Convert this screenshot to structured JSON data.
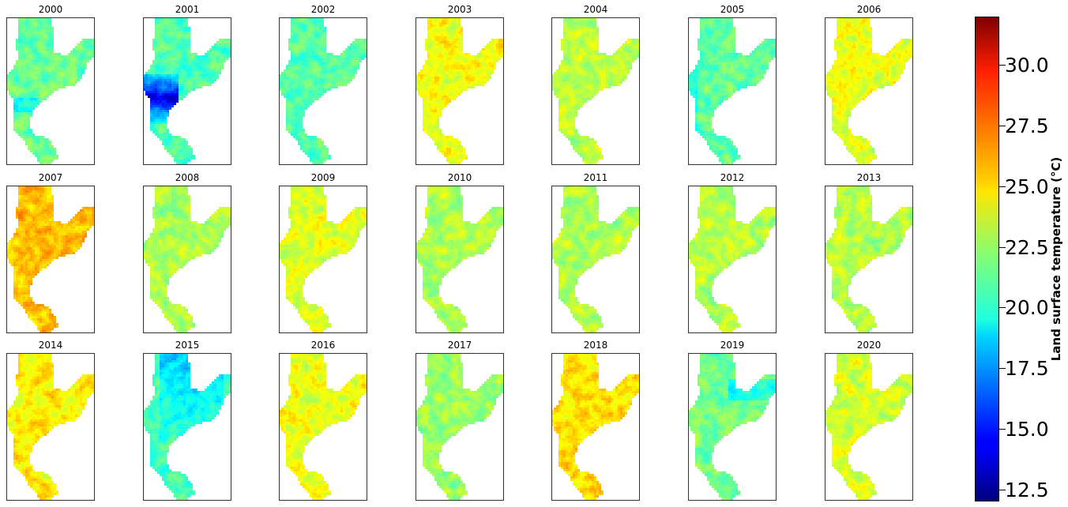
{
  "chart_data": {
    "type": "heatmap",
    "panels": [
      {
        "title": "2000",
        "mean": 21.5
      },
      {
        "title": "2001",
        "mean": 21.0
      },
      {
        "title": "2002",
        "mean": 21.3
      },
      {
        "title": "2003",
        "mean": 24.3
      },
      {
        "title": "2004",
        "mean": 23.2
      },
      {
        "title": "2005",
        "mean": 21.4
      },
      {
        "title": "2006",
        "mean": 24.0
      },
      {
        "title": "2007",
        "mean": 25.8
      },
      {
        "title": "2008",
        "mean": 22.8
      },
      {
        "title": "2009",
        "mean": 23.9
      },
      {
        "title": "2010",
        "mean": 22.9
      },
      {
        "title": "2011",
        "mean": 22.9
      },
      {
        "title": "2012",
        "mean": 23.0
      },
      {
        "title": "2013",
        "mean": 23.0
      },
      {
        "title": "2014",
        "mean": 24.8
      },
      {
        "title": "2015",
        "mean": 21.0
      },
      {
        "title": "2016",
        "mean": 24.2
      },
      {
        "title": "2017",
        "mean": 22.6
      },
      {
        "title": "2018",
        "mean": 25.0
      },
      {
        "title": "2019",
        "mean": 21.8
      },
      {
        "title": "2020",
        "mean": 23.6
      }
    ],
    "colorbar": {
      "label": "Land surface temperature (°C)",
      "colormap": "jet",
      "range": [
        12.0,
        32.0
      ],
      "ticks": [
        {
          "value": 12.5,
          "label": "12.5"
        },
        {
          "value": 15.0,
          "label": "15.0"
        },
        {
          "value": 17.5,
          "label": "17.5"
        },
        {
          "value": 20.0,
          "label": "20.0"
        },
        {
          "value": 22.5,
          "label": "22.5"
        },
        {
          "value": 25.0,
          "label": "25.0"
        },
        {
          "value": 27.5,
          "label": "27.5"
        },
        {
          "value": 30.0,
          "label": "30.0"
        }
      ]
    }
  }
}
